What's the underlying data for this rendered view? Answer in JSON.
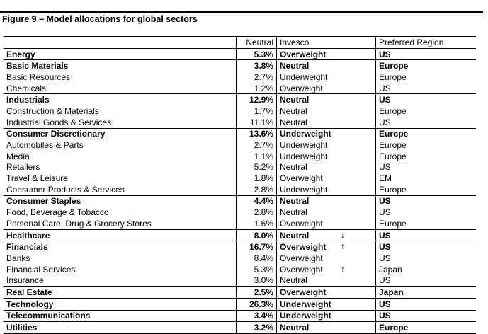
{
  "title": "Figure 9 – Model allocations for global sectors",
  "headers": {
    "sector": "",
    "neutral": "Neutral",
    "invesco": "Invesco",
    "region": "Preferred Region"
  },
  "rows": [
    {
      "sector": "Energy",
      "neutral": "5.3%",
      "invesco": "Overweight",
      "arrow": "",
      "region": "US",
      "bold": true
    },
    {
      "sector": "Basic Materials",
      "neutral": "3.8%",
      "invesco": "Neutral",
      "arrow": "",
      "region": "Europe",
      "bold": true
    },
    {
      "sector": "Basic Resources",
      "neutral": "2.7%",
      "invesco": "Underweight",
      "arrow": "",
      "region": "Europe",
      "bold": false
    },
    {
      "sector": "Chemicals",
      "neutral": "1.2%",
      "invesco": "Overweight",
      "arrow": "",
      "region": "US",
      "bold": false
    },
    {
      "sector": "Industrials",
      "neutral": "12.9%",
      "invesco": "Neutral",
      "arrow": "",
      "region": "US",
      "bold": true
    },
    {
      "sector": "Construction & Materials",
      "neutral": "1.7%",
      "invesco": "Neutral",
      "arrow": "",
      "region": "Europe",
      "bold": false
    },
    {
      "sector": "Industrial Goods & Services",
      "neutral": "11.1%",
      "invesco": "Neutral",
      "arrow": "",
      "region": "US",
      "bold": false
    },
    {
      "sector": "Consumer Discretionary",
      "neutral": "13.6%",
      "invesco": "Underweight",
      "arrow": "",
      "region": "Europe",
      "bold": true
    },
    {
      "sector": "Automobiles & Parts",
      "neutral": "2.7%",
      "invesco": "Underweight",
      "arrow": "",
      "region": "Europe",
      "bold": false
    },
    {
      "sector": "Media",
      "neutral": "1.1%",
      "invesco": "Underweight",
      "arrow": "",
      "region": "Europe",
      "bold": false
    },
    {
      "sector": "Retailers",
      "neutral": "5.2%",
      "invesco": "Neutral",
      "arrow": "",
      "region": "US",
      "bold": false
    },
    {
      "sector": "Travel & Leisure",
      "neutral": "1.8%",
      "invesco": "Overweight",
      "arrow": "",
      "region": "EM",
      "bold": false
    },
    {
      "sector": "Consumer Products & Services",
      "neutral": "2.8%",
      "invesco": "Underweight",
      "arrow": "",
      "region": "Europe",
      "bold": false
    },
    {
      "sector": "Consumer Staples",
      "neutral": "4.4%",
      "invesco": "Neutral",
      "arrow": "",
      "region": "US",
      "bold": true
    },
    {
      "sector": "Food, Beverage & Tobacco",
      "neutral": "2.8%",
      "invesco": "Neutral",
      "arrow": "",
      "region": "US",
      "bold": false
    },
    {
      "sector": "Personal Care, Drug & Grocery Stores",
      "neutral": "1.6%",
      "invesco": "Overweight",
      "arrow": "",
      "region": "Europe",
      "bold": false
    },
    {
      "sector": "Healthcare",
      "neutral": "8.0%",
      "invesco": "Neutral",
      "arrow": "↓",
      "region": "US",
      "bold": true
    },
    {
      "sector": "Financials",
      "neutral": "16.7%",
      "invesco": "Overweight",
      "arrow": "↑",
      "region": "US",
      "bold": true
    },
    {
      "sector": "Banks",
      "neutral": "8.4%",
      "invesco": "Overweight",
      "arrow": "",
      "region": "US",
      "bold": false
    },
    {
      "sector": "Financial Services",
      "neutral": "5.3%",
      "invesco": "Overweight",
      "arrow": "↑",
      "region": "Japan",
      "bold": false
    },
    {
      "sector": "Insurance",
      "neutral": "3.0%",
      "invesco": "Neutral",
      "arrow": "",
      "region": "US",
      "bold": false
    },
    {
      "sector": "Real Estate",
      "neutral": "2.5%",
      "invesco": "Overweight",
      "arrow": "",
      "region": "Japan",
      "bold": true
    },
    {
      "sector": "Technology",
      "neutral": "26.3%",
      "invesco": "Underweight",
      "arrow": "",
      "region": "US",
      "bold": true
    },
    {
      "sector": "Telecommunications",
      "neutral": "3.4%",
      "invesco": "Underweight",
      "arrow": "",
      "region": "US",
      "bold": true
    },
    {
      "sector": "Utilities",
      "neutral": "3.2%",
      "invesco": "Neutral",
      "arrow": "",
      "region": "Europe",
      "bold": true
    }
  ]
}
